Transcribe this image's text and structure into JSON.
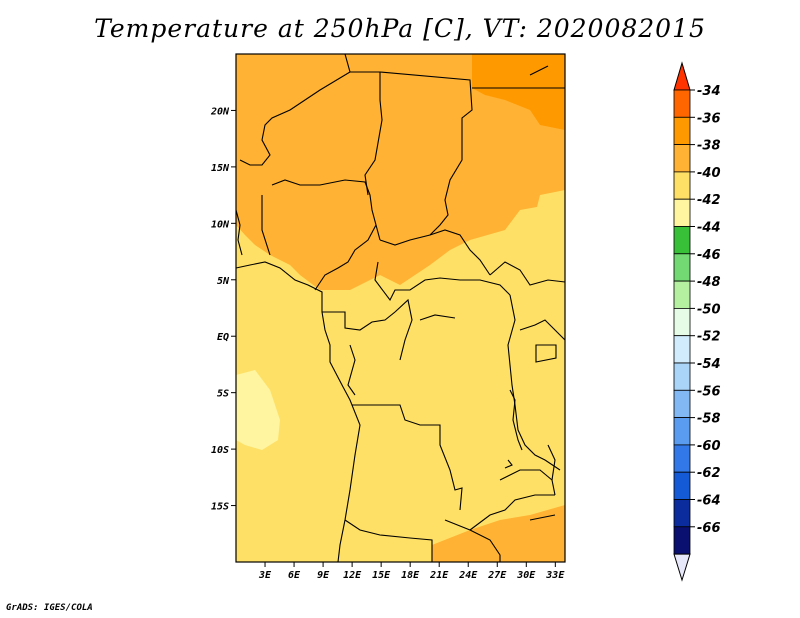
{
  "title": "Temperature at 250hPa [C], VT: 2020082015",
  "credit": "GrADS: IGES/COLA",
  "map": {
    "lon_range": [
      0,
      34
    ],
    "lat_range": [
      -20,
      25
    ],
    "lat_ticks": [
      {
        "value": 20,
        "label": "20N"
      },
      {
        "value": 15,
        "label": "15N"
      },
      {
        "value": 10,
        "label": "10N"
      },
      {
        "value": 5,
        "label": "5N"
      },
      {
        "value": 0,
        "label": "EQ"
      },
      {
        "value": -5,
        "label": "5S"
      },
      {
        "value": -10,
        "label": "10S"
      },
      {
        "value": -15,
        "label": "15S"
      }
    ],
    "lon_ticks": [
      {
        "value": 3,
        "label": "3E"
      },
      {
        "value": 6,
        "label": "6E"
      },
      {
        "value": 9,
        "label": "9E"
      },
      {
        "value": 12,
        "label": "12E"
      },
      {
        "value": 15,
        "label": "15E"
      },
      {
        "value": 18,
        "label": "18E"
      },
      {
        "value": 21,
        "label": "21E"
      },
      {
        "value": 24,
        "label": "24E"
      },
      {
        "value": 27,
        "label": "27E"
      },
      {
        "value": 30,
        "label": "30E"
      },
      {
        "value": 33,
        "label": "33E"
      }
    ]
  },
  "colorbar": {
    "labels": [
      "-34",
      "-36",
      "-38",
      "-40",
      "-42",
      "-44",
      "-46",
      "-48",
      "-50",
      "-52",
      "-54",
      "-56",
      "-58",
      "-60",
      "-62",
      "-64",
      "-66"
    ],
    "colors": [
      "#ff6600",
      "#ff9900",
      "#ffb233",
      "#ffe066",
      "#fff5a0",
      "#39c039",
      "#73d973",
      "#b4f0a0",
      "#e6fce6",
      "#d0ecfd",
      "#aad4f8",
      "#82b8f4",
      "#5a9cf0",
      "#3278e8",
      "#145ad6",
      "#0a2c9c",
      "#0a1070",
      "#e8e8fb"
    ],
    "top_color": "#ff3300"
  },
  "legend": [
    {
      "color": "#ff9900",
      "label": "-36"
    },
    {
      "color": "#ffb233",
      "label": "-38"
    },
    {
      "color": "#ffe066",
      "label": "-40"
    },
    {
      "color": "#fff5a0",
      "label": "-42"
    }
  ]
}
